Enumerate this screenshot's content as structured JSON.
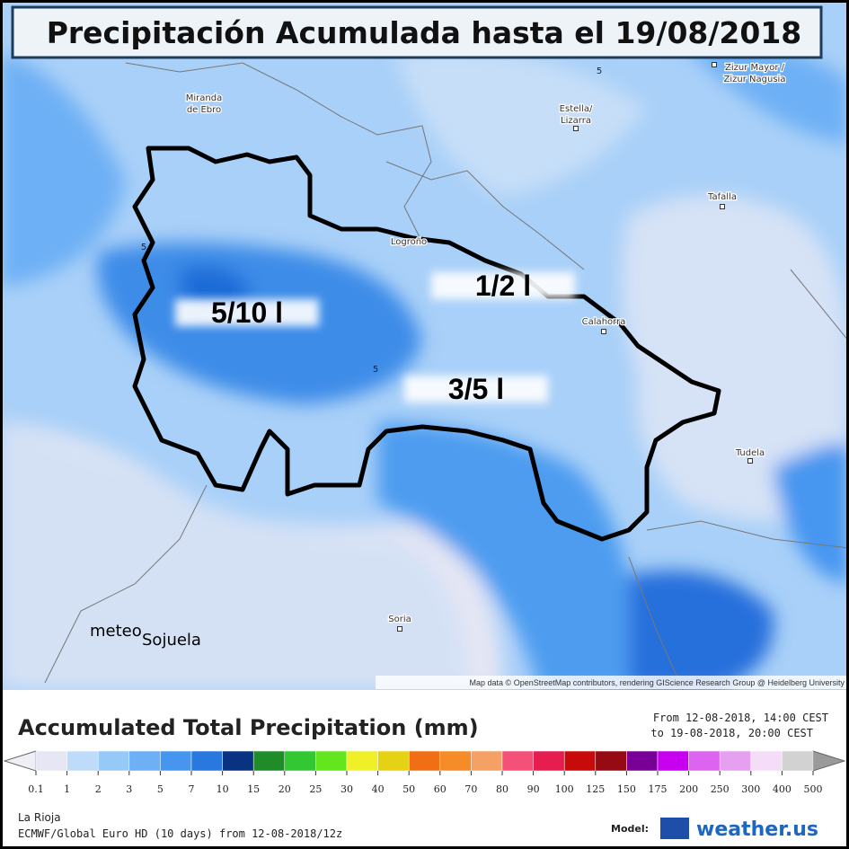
{
  "title": "Precipitación Acumulada hasta el 19/08/2018",
  "cities": [
    {
      "lines": [
        "Miranda",
        "de Ebro"
      ]
    },
    {
      "lines": [
        "Estella/",
        "Lizarra"
      ]
    },
    {
      "lines": [
        "Zizur Mayor /",
        "Zizur Nagusia"
      ]
    },
    {
      "lines": [
        "Tafalla"
      ]
    },
    {
      "lines": [
        "Logroño"
      ]
    },
    {
      "lines": [
        "Calahorra"
      ]
    },
    {
      "lines": [
        "Tudela"
      ]
    },
    {
      "lines": [
        "Soria"
      ]
    }
  ],
  "contour_labels": [
    "5",
    "5",
    "5"
  ],
  "region_labels": [
    "5/10 l",
    "1/2 l",
    "3/5 l"
  ],
  "watermark": [
    "meteo",
    "Sojuela"
  ],
  "attribution": "Map data © OpenStreetMap contributors, rendering GIScience Research Group @ Heidelberg University",
  "legend": {
    "title": "Accumulated Total Precipitation (mm)",
    "period_from": "From 12-08-2018, 14:00 CEST",
    "period_to": "to 19-08-2018, 20:00 CEST",
    "ticks": [
      0.1,
      1,
      2,
      3,
      5,
      7,
      10,
      15,
      20,
      25,
      30,
      40,
      50,
      60,
      70,
      80,
      90,
      100,
      125,
      150,
      175,
      200,
      250,
      300,
      400,
      500
    ],
    "colors": [
      "#e6e6f5",
      "#bedcfa",
      "#96c8f8",
      "#6eb0f5",
      "#4696f0",
      "#2878e0",
      "#0a3282",
      "#1e8c28",
      "#32c832",
      "#64e61e",
      "#f0f028",
      "#e6d214",
      "#f06e14",
      "#f58c28",
      "#f5a064",
      "#f55078",
      "#e61e50",
      "#c80a0a",
      "#960a14",
      "#780096",
      "#c800f0",
      "#dc64f0",
      "#e6a0f0",
      "#f5dcf8",
      "#d2d2d2"
    ],
    "under_color": "#efeff8",
    "over_color": "#9a9a9a",
    "region": "La Rioja",
    "model_info": "ECMWF/Global Euro HD (10 days) from 12-08-2018/12z",
    "model_label": "Model:",
    "brand": "weather.us"
  }
}
